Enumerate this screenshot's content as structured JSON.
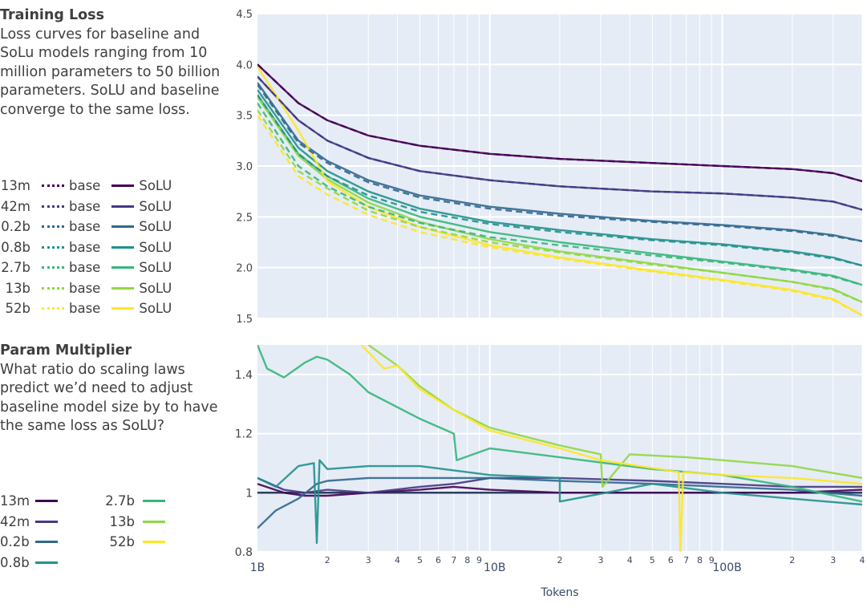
{
  "loss_panel": {
    "title": "Training Loss",
    "description": "Loss curves for baseline and SoLu models ranging from 10 million parameters to 50 billion parameters. SoLU and baseline converge to the same loss."
  },
  "multiplier_panel": {
    "title": "Param Multiplier",
    "description": "What ratio do scaling laws predict we’d need to adjust baseline model size by to have the same loss as SoLU?"
  },
  "legend": {
    "base_label": "base",
    "solu_label": "SoLU",
    "models": [
      {
        "size": "13m",
        "color": "#440154"
      },
      {
        "size": "42m",
        "color": "#443983"
      },
      {
        "size": "0.2b",
        "color": "#31688e"
      },
      {
        "size": "0.8b",
        "color": "#21918c"
      },
      {
        "size": "2.7b",
        "color": "#35b779"
      },
      {
        "size": "13b",
        "color": "#90d743"
      },
      {
        "size": "52b",
        "color": "#fde725"
      }
    ]
  },
  "chart_data": [
    {
      "type": "line",
      "title": "Training Loss",
      "xlabel": "Tokens",
      "ylabel": "",
      "xscale": "log",
      "xlim": [
        1000000000.0,
        400000000000.0
      ],
      "ylim": [
        1.5,
        4.5
      ],
      "yticks": [
        "1.5",
        "2.0",
        "2.5",
        "3.0",
        "3.5",
        "4.0",
        "4.5"
      ],
      "ytick_values": [
        1.5,
        2.0,
        2.5,
        3.0,
        3.5,
        4.0,
        4.5
      ],
      "grid": true,
      "x": [
        1000000000.0,
        1500000000.0,
        2000000000.0,
        3000000000.0,
        5000000000.0,
        10000000000.0,
        20000000000.0,
        50000000000.0,
        100000000000.0,
        200000000000.0,
        300000000000.0,
        400000000000.0
      ],
      "series": [
        {
          "name": "13m SoLU",
          "style": "solid",
          "color": "#440154",
          "values": [
            4.0,
            3.62,
            3.45,
            3.3,
            3.2,
            3.12,
            3.07,
            3.03,
            3.0,
            2.97,
            2.93,
            2.85
          ]
        },
        {
          "name": "42m SoLU",
          "style": "solid",
          "color": "#443983",
          "values": [
            3.88,
            3.45,
            3.25,
            3.08,
            2.95,
            2.86,
            2.8,
            2.75,
            2.73,
            2.69,
            2.65,
            2.57
          ]
        },
        {
          "name": "0.2b SoLU",
          "style": "solid",
          "color": "#31688e",
          "values": [
            3.82,
            3.25,
            3.05,
            2.86,
            2.71,
            2.6,
            2.53,
            2.46,
            2.42,
            2.37,
            2.32,
            2.26
          ]
        },
        {
          "name": "0.8b SoLU",
          "style": "solid",
          "color": "#21918c",
          "values": [
            3.75,
            3.18,
            2.95,
            2.75,
            2.58,
            2.45,
            2.37,
            2.28,
            2.23,
            2.16,
            2.1,
            2.02
          ]
        },
        {
          "name": "2.7b SoLU",
          "style": "solid",
          "color": "#35b779",
          "values": [
            3.7,
            3.12,
            2.9,
            2.68,
            2.5,
            2.35,
            2.25,
            2.14,
            2.06,
            1.98,
            1.92,
            1.83
          ]
        },
        {
          "name": "13b SoLU",
          "style": "solid",
          "color": "#90d743",
          "values": [
            3.68,
            3.1,
            2.87,
            2.64,
            2.45,
            2.28,
            2.16,
            2.04,
            1.95,
            1.86,
            1.79,
            1.66
          ]
        },
        {
          "name": "52b SoLU",
          "style": "solid",
          "color": "#fde725",
          "values": [
            3.98,
            3.35,
            2.85,
            2.6,
            2.4,
            2.22,
            2.1,
            1.97,
            1.88,
            1.78,
            1.69,
            1.53
          ]
        },
        {
          "name": "13m base",
          "style": "dash",
          "color": "#440154",
          "values": [
            4.0,
            3.62,
            3.45,
            3.3,
            3.2,
            3.12,
            3.07,
            3.03,
            3.0,
            2.97,
            2.93,
            2.85
          ]
        },
        {
          "name": "42m base",
          "style": "dash",
          "color": "#443983",
          "values": [
            3.88,
            3.45,
            3.25,
            3.08,
            2.95,
            2.86,
            2.8,
            2.75,
            2.73,
            2.69,
            2.65,
            2.57
          ]
        },
        {
          "name": "0.2b base",
          "style": "dash",
          "color": "#31688e",
          "values": [
            3.8,
            3.23,
            3.03,
            2.84,
            2.69,
            2.58,
            2.51,
            2.45,
            2.41,
            2.36,
            2.31,
            2.26
          ]
        },
        {
          "name": "0.8b base",
          "style": "dash",
          "color": "#21918c",
          "values": [
            3.7,
            3.12,
            2.9,
            2.71,
            2.55,
            2.43,
            2.35,
            2.27,
            2.22,
            2.15,
            2.09,
            2.02
          ]
        },
        {
          "name": "2.7b base",
          "style": "dash",
          "color": "#35b779",
          "values": [
            3.62,
            3.0,
            2.8,
            2.6,
            2.44,
            2.3,
            2.22,
            2.12,
            2.05,
            1.97,
            1.91,
            1.83
          ]
        },
        {
          "name": "13b base",
          "style": "dash",
          "color": "#90d743",
          "values": [
            3.55,
            2.95,
            2.78,
            2.56,
            2.4,
            2.25,
            2.15,
            2.03,
            1.95,
            1.86,
            1.78,
            1.66
          ]
        },
        {
          "name": "52b base",
          "style": "dash",
          "color": "#fde725",
          "values": [
            3.5,
            2.9,
            2.72,
            2.52,
            2.35,
            2.2,
            2.09,
            1.96,
            1.87,
            1.77,
            1.68,
            1.53
          ]
        }
      ]
    },
    {
      "type": "line",
      "title": "Param Multiplier",
      "xlabel": "Tokens",
      "ylabel": "",
      "xscale": "log",
      "xlim": [
        1000000000.0,
        400000000000.0
      ],
      "ylim": [
        0.8,
        1.5
      ],
      "yticks": [
        "0.8",
        "1",
        "1.2",
        "1.4"
      ],
      "ytick_values": [
        0.8,
        1.0,
        1.2,
        1.4
      ],
      "xticks_major": [
        "1B",
        "10B",
        "100B"
      ],
      "xticks_major_values": [
        1000000000.0,
        10000000000.0,
        100000000000.0
      ],
      "xticks_minor": [
        "2",
        "3",
        "4",
        "5",
        "6",
        "7",
        "8",
        "9",
        "2",
        "3",
        "4",
        "5",
        "6",
        "7",
        "8",
        "9",
        "2",
        "3",
        "4"
      ],
      "xticks_minor_values": [
        2000000000.0,
        3000000000.0,
        4000000000.0,
        5000000000.0,
        6000000000.0,
        7000000000.0,
        8000000000.0,
        9000000000.0,
        20000000000.0,
        30000000000.0,
        40000000000.0,
        50000000000.0,
        60000000000.0,
        70000000000.0,
        80000000000.0,
        90000000000.0,
        200000000000.0,
        300000000000.0,
        400000000000.0
      ],
      "grid": true,
      "reference_line": 1.0,
      "series": [
        {
          "name": "13m",
          "color": "#440154",
          "x": [
            1000000000.0,
            1300000000.0,
            1600000000.0,
            2000000000.0,
            3000000000.0,
            5000000000.0,
            7000000000.0,
            10000000000.0,
            20000000000.0,
            50000000000.0,
            100000000000.0,
            200000000000.0,
            400000000000.0
          ],
          "values": [
            1.03,
            1.0,
            0.99,
            0.99,
            1.0,
            1.01,
            1.02,
            1.01,
            1.0,
            1.0,
            1.0,
            1.0,
            1.01
          ]
        },
        {
          "name": "42m",
          "color": "#443983",
          "x": [
            1000000000.0,
            1300000000.0,
            1600000000.0,
            2000000000.0,
            3000000000.0,
            5000000000.0,
            7000000000.0,
            10000000000.0,
            20000000000.0,
            50000000000.0,
            100000000000.0,
            200000000000.0,
            400000000000.0
          ],
          "values": [
            1.05,
            1.01,
            1.0,
            1.01,
            1.0,
            1.02,
            1.03,
            1.05,
            1.05,
            1.04,
            1.03,
            1.02,
            1.02
          ]
        },
        {
          "name": "0.2b",
          "color": "#31688e",
          "x": [
            1000000000.0,
            1200000000.0,
            1500000000.0,
            1800000000.0,
            2000000000.0,
            3000000000.0,
            5000000000.0,
            10000000000.0,
            20000000000.0,
            50000000000.0,
            100000000000.0,
            200000000000.0,
            400000000000.0
          ],
          "values": [
            0.88,
            0.94,
            0.98,
            1.03,
            1.04,
            1.05,
            1.05,
            1.05,
            1.04,
            1.03,
            1.02,
            1.01,
            0.99
          ]
        },
        {
          "name": "0.8b",
          "color": "#21918c",
          "x": [
            1000000000.0,
            1200000000.0,
            1500000000.0,
            1750000000.0,
            1800000000.0,
            1850000000.0,
            2000000000.0,
            3000000000.0,
            5000000000.0,
            10000000000.0,
            20000000000.0,
            20000000000.0,
            50000000000.0,
            100000000000.0,
            200000000000.0,
            400000000000.0
          ],
          "values": [
            1.05,
            1.02,
            1.09,
            1.1,
            0.83,
            1.11,
            1.08,
            1.09,
            1.09,
            1.06,
            1.05,
            0.97,
            1.03,
            1.0,
            0.98,
            0.96
          ]
        },
        {
          "name": "2.7b",
          "color": "#35b779",
          "x": [
            1000000000.0,
            1100000000.0,
            1300000000.0,
            1600000000.0,
            1800000000.0,
            2000000000.0,
            2500000000.0,
            3000000000.0,
            5000000000.0,
            7000000000.0,
            7200000000.0,
            10000000000.0,
            20000000000.0,
            50000000000.0,
            100000000000.0,
            200000000000.0,
            400000000000.0
          ],
          "values": [
            1.5,
            1.42,
            1.39,
            1.44,
            1.46,
            1.45,
            1.4,
            1.34,
            1.25,
            1.2,
            1.11,
            1.15,
            1.12,
            1.08,
            1.06,
            1.02,
            0.97
          ]
        },
        {
          "name": "13b",
          "color": "#90d743",
          "x": [
            3000000000.0,
            4000000000.0,
            5000000000.0,
            7000000000.0,
            10000000000.0,
            20000000000.0,
            30000000000.0,
            30500000000.0,
            40000000000.0,
            70000000000.0,
            100000000000.0,
            200000000000.0,
            400000000000.0
          ],
          "values": [
            1.5,
            1.43,
            1.36,
            1.28,
            1.22,
            1.16,
            1.13,
            1.02,
            1.13,
            1.12,
            1.11,
            1.09,
            1.05
          ]
        },
        {
          "name": "52b",
          "color": "#fde725",
          "x": [
            2800000000.0,
            3500000000.0,
            4000000000.0,
            5000000000.0,
            7000000000.0,
            10000000000.0,
            20000000000.0,
            30000000000.0,
            65000000000.0,
            66000000000.0,
            68000000000.0,
            100000000000.0,
            200000000000.0,
            400000000000.0
          ],
          "values": [
            1.5,
            1.42,
            1.43,
            1.35,
            1.28,
            1.21,
            1.15,
            1.11,
            1.07,
            0.79,
            1.07,
            1.06,
            1.05,
            1.03
          ]
        }
      ]
    }
  ]
}
